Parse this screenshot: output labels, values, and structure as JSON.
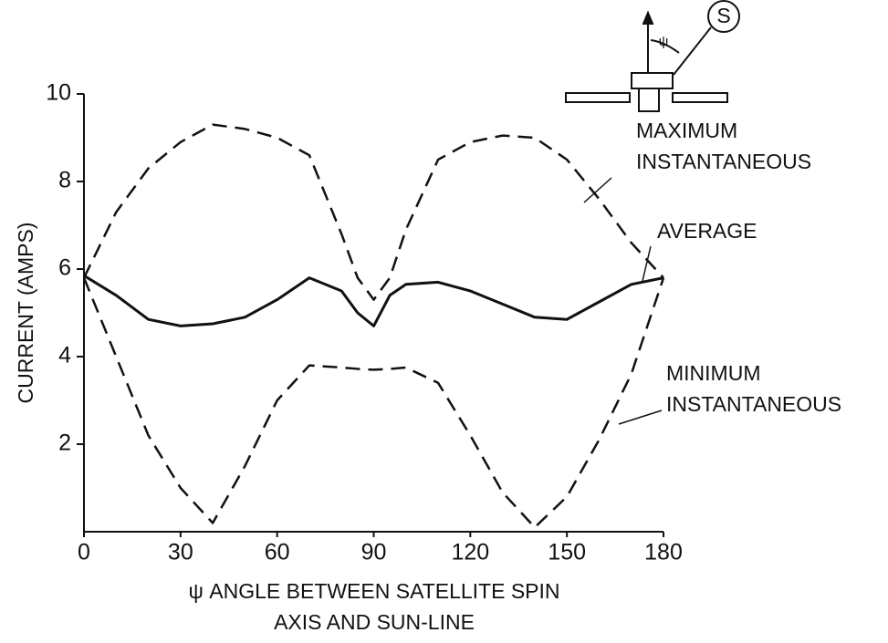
{
  "chart_data": {
    "type": "line",
    "ylabel": "CURRENT (AMPS)",
    "xlabel_lines": [
      "ψ ANGLE BETWEEN SATELLITE SPIN",
      "AXIS AND SUN-LINE"
    ],
    "x": [
      0,
      10,
      20,
      30,
      40,
      50,
      60,
      70,
      80,
      85,
      90,
      95,
      100,
      110,
      120,
      130,
      140,
      150,
      160,
      170,
      180
    ],
    "xlim": [
      0,
      180
    ],
    "xticks": [
      0,
      30,
      60,
      90,
      120,
      150,
      180
    ],
    "ylim": [
      0,
      10
    ],
    "yticks": [
      2,
      4,
      6,
      8,
      10
    ],
    "series": [
      {
        "label_lines": [
          "MAXIMUM",
          "INSTANTANEOUS"
        ],
        "color": "#111111",
        "dashed": true,
        "values": [
          5.8,
          7.3,
          8.3,
          8.9,
          9.3,
          9.2,
          9.0,
          8.6,
          6.8,
          5.8,
          5.3,
          5.8,
          6.9,
          8.5,
          8.9,
          9.05,
          9.0,
          8.5,
          7.6,
          6.6,
          5.8
        ]
      },
      {
        "label_lines": [
          "AVERAGE"
        ],
        "color": "#111111",
        "dashed": false,
        "values": [
          5.85,
          5.4,
          4.85,
          4.7,
          4.75,
          4.9,
          5.3,
          5.8,
          5.5,
          5.0,
          4.7,
          5.4,
          5.65,
          5.7,
          5.5,
          5.2,
          4.9,
          4.85,
          5.25,
          5.65,
          5.8
        ]
      },
      {
        "label_lines": [
          "MINIMUM",
          "INSTANTANEOUS"
        ],
        "color": "#111111",
        "dashed": true,
        "values": [
          5.8,
          4.0,
          2.2,
          1.0,
          0.2,
          1.5,
          3.0,
          3.8,
          3.75,
          3.72,
          3.7,
          3.72,
          3.75,
          3.4,
          2.2,
          0.9,
          0.1,
          0.8,
          2.1,
          3.6,
          5.8
        ]
      }
    ],
    "diagram_label": "S",
    "diagram_angle_label": "ψ"
  }
}
